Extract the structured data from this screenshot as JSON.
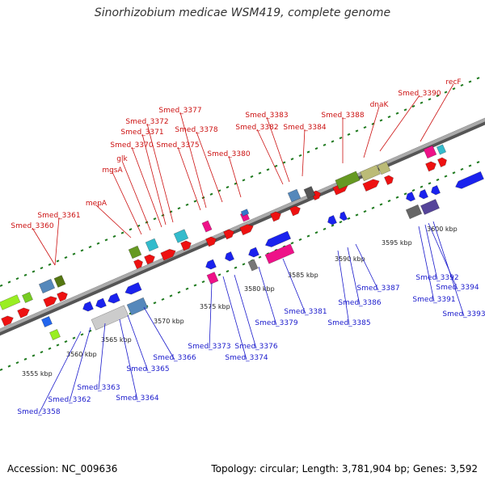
{
  "title": "Sinorhizobium medicae WSM419, complete genome",
  "footer": {
    "accession": "Accession: NC_009636",
    "summary": "Topology: circular; Length: 3,781,904 bp; Genes: 3,592"
  },
  "colors": {
    "forward_label": "#cc1111",
    "reverse_label": "#1a1acc",
    "forward_arrow": "#ee1111",
    "reverse_arrow": "#1a22ee",
    "backbone": "#888888",
    "tick": "#1f7a1f"
  },
  "ruler": [
    {
      "label": "3555 kbp"
    },
    {
      "label": "3560 kbp"
    },
    {
      "label": "3565 kbp"
    },
    {
      "label": "3570 kbp"
    },
    {
      "label": "3575 kbp"
    },
    {
      "label": "3580 kbp"
    },
    {
      "label": "3585 kbp"
    },
    {
      "label": "3590 kbp"
    },
    {
      "label": "3595 kbp"
    },
    {
      "label": "3600 kbp"
    }
  ],
  "forward_labels": [
    {
      "text": "Smed_3360"
    },
    {
      "text": "Smed_3361"
    },
    {
      "text": "mepA"
    },
    {
      "text": "mgsA"
    },
    {
      "text": "glk"
    },
    {
      "text": "Smed_3370"
    },
    {
      "text": "Smed_3371"
    },
    {
      "text": "Smed_3372"
    },
    {
      "text": "Smed_3375"
    },
    {
      "text": "Smed_3377"
    },
    {
      "text": "Smed_3378"
    },
    {
      "text": "Smed_3380"
    },
    {
      "text": "Smed_3382"
    },
    {
      "text": "Smed_3383"
    },
    {
      "text": "Smed_3384"
    },
    {
      "text": "Smed_3388"
    },
    {
      "text": "dnaK"
    },
    {
      "text": "Smed_3390"
    },
    {
      "text": "recF"
    }
  ],
  "reverse_labels": [
    {
      "text": "Smed_3358"
    },
    {
      "text": "Smed_3362"
    },
    {
      "text": "Smed_3363"
    },
    {
      "text": "Smed_3364"
    },
    {
      "text": "Smed_3365"
    },
    {
      "text": "Smed_3366"
    },
    {
      "text": "Smed_3373"
    },
    {
      "text": "Smed_3374"
    },
    {
      "text": "Smed_3376"
    },
    {
      "text": "Smed_3379"
    },
    {
      "text": "Smed_3381"
    },
    {
      "text": "Smed_3385"
    },
    {
      "text": "Smed_3386"
    },
    {
      "text": "Smed_3387"
    },
    {
      "text": "Smed_3391"
    },
    {
      "text": "Smed_3392"
    },
    {
      "text": "Smed_3393"
    },
    {
      "text": "Smed_3394"
    }
  ]
}
